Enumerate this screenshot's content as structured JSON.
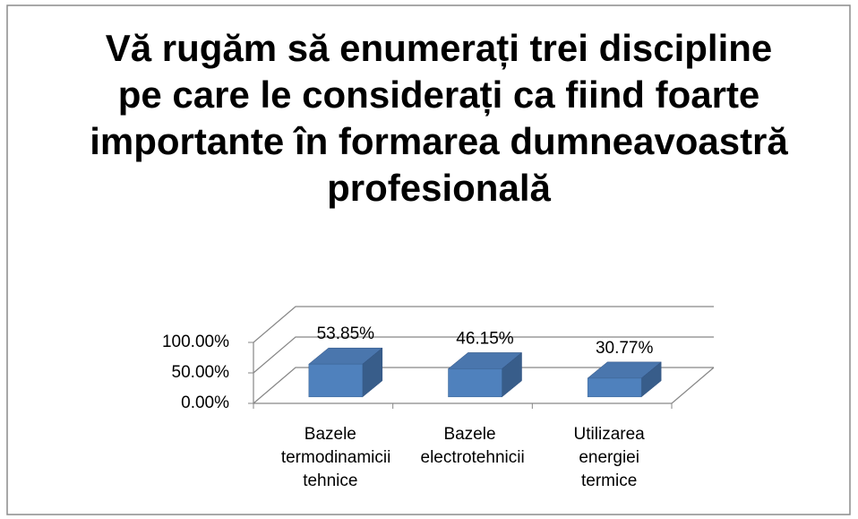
{
  "chart_data": {
    "type": "bar3d",
    "title": "Vă rugăm să enumerați trei discipline pe care le considerați ca fiind foarte importante în formarea dumneavoastră profesională",
    "categories": [
      "Bazele termodinamicii tehnice",
      "Bazele electrotehnicii",
      "Utilizarea energiei termice"
    ],
    "values": [
      53.85,
      46.15,
      30.77
    ],
    "value_labels": [
      "53.85%",
      "46.15%",
      "30.77%"
    ],
    "color": "#4f81bd",
    "ylim": [
      0,
      100
    ],
    "yticks": [
      {
        "value": 0,
        "label": "0.00%"
      },
      {
        "value": 50,
        "label": "50.00%"
      },
      {
        "value": 100,
        "label": "100.00%"
      }
    ],
    "grid": true
  }
}
